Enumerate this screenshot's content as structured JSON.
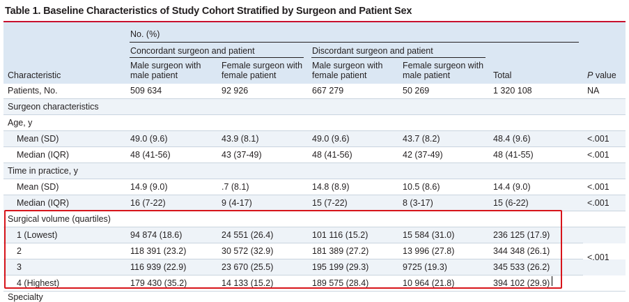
{
  "title": "Table 1. Baseline Characteristics of Study Cohort Stratified by Surgeon and Patient Sex",
  "header": {
    "no_pct": "No. (%)",
    "concordant": "Concordant surgeon and patient",
    "discordant": "Discordant surgeon and patient",
    "characteristic": "Characteristic",
    "col1_line1": "Male surgeon with",
    "col1_line2": "male patient",
    "col2_line1": "Female surgeon with",
    "col2_line2": "female patient",
    "col3_line1": "Male surgeon with",
    "col3_line2": "female patient",
    "col4_line1": "Female surgeon with",
    "col4_line2": "male patient",
    "total": "Total",
    "p_value_italic": "P",
    "p_value_rest": " value"
  },
  "rows": [
    {
      "label": "Patients, No.",
      "c1": "509 634",
      "c2": "92 926",
      "c3": "667 279",
      "c4": "50 269",
      "total": "1 320 108",
      "p": "NA"
    },
    {
      "label": "Surgeon characteristics",
      "c1": "",
      "c2": "",
      "c3": "",
      "c4": "",
      "total": "",
      "p": ""
    },
    {
      "label": "Age, y",
      "c1": "",
      "c2": "",
      "c3": "",
      "c4": "",
      "total": "",
      "p": ""
    },
    {
      "label": "Mean (SD)",
      "c1": "49.0 (9.6)",
      "c2": "43.9 (8.1)",
      "c3": "49.0 (9.6)",
      "c4": "43.7 (8.2)",
      "total": "48.4 (9.6)",
      "p": "<.001"
    },
    {
      "label": "Median (IQR)",
      "c1": "48 (41-56)",
      "c2": "43 (37-49)",
      "c3": "48 (41-56)",
      "c4": "42 (37-49)",
      "total": "48 (41-55)",
      "p": "<.001"
    },
    {
      "label": "Time in practice, y",
      "c1": "",
      "c2": "",
      "c3": "",
      "c4": "",
      "total": "",
      "p": ""
    },
    {
      "label": "Mean (SD)",
      "c1": "14.9 (9.0)",
      "c2": ".7 (8.1)",
      "c3": "14.8 (8.9)",
      "c4": "10.5 (8.6)",
      "total": "14.4 (9.0)",
      "p": "<.001"
    },
    {
      "label": "Median (IQR)",
      "c1": "16 (7-22)",
      "c2": "9 (4-17)",
      "c3": "15 (7-22)",
      "c4": "8 (3-17)",
      "total": "15 (6-22)",
      "p": "<.001"
    },
    {
      "label": "Surgical volume (quartiles)",
      "c1": "",
      "c2": "",
      "c3": "",
      "c4": "",
      "total": "",
      "p": ""
    },
    {
      "label": "1 (Lowest)",
      "c1": "94 874 (18.6)",
      "c2": "24 551 (26.4)",
      "c3": "101 116 (15.2)",
      "c4": "15 584 (31.0)",
      "total": "236 125 (17.9)",
      "p": ""
    },
    {
      "label": "2",
      "c1": "118 391 (23.2)",
      "c2": "30 572 (32.9)",
      "c3": "181 389 (27.2)",
      "c4": "13 996 (27.8)",
      "total": "344 348 (26.1)",
      "p": ""
    },
    {
      "label": "3",
      "c1": "116 939 (22.9)",
      "c2": "23 670 (25.5)",
      "c3": "195 199 (29.3)",
      "c4": "9725 (19.3)",
      "total": "345 533 (26.2)",
      "p": ""
    },
    {
      "label": "4 (Highest)",
      "c1": "179 430 (35.2)",
      "c2": "14 133 (15.2)",
      "c3": "189 575 (28.4)",
      "c4": "10 964 (21.8)",
      "total": "394 102 (29.9)",
      "p": ""
    }
  ],
  "volume_p": "<.001",
  "next_row_partial": "Specialty"
}
